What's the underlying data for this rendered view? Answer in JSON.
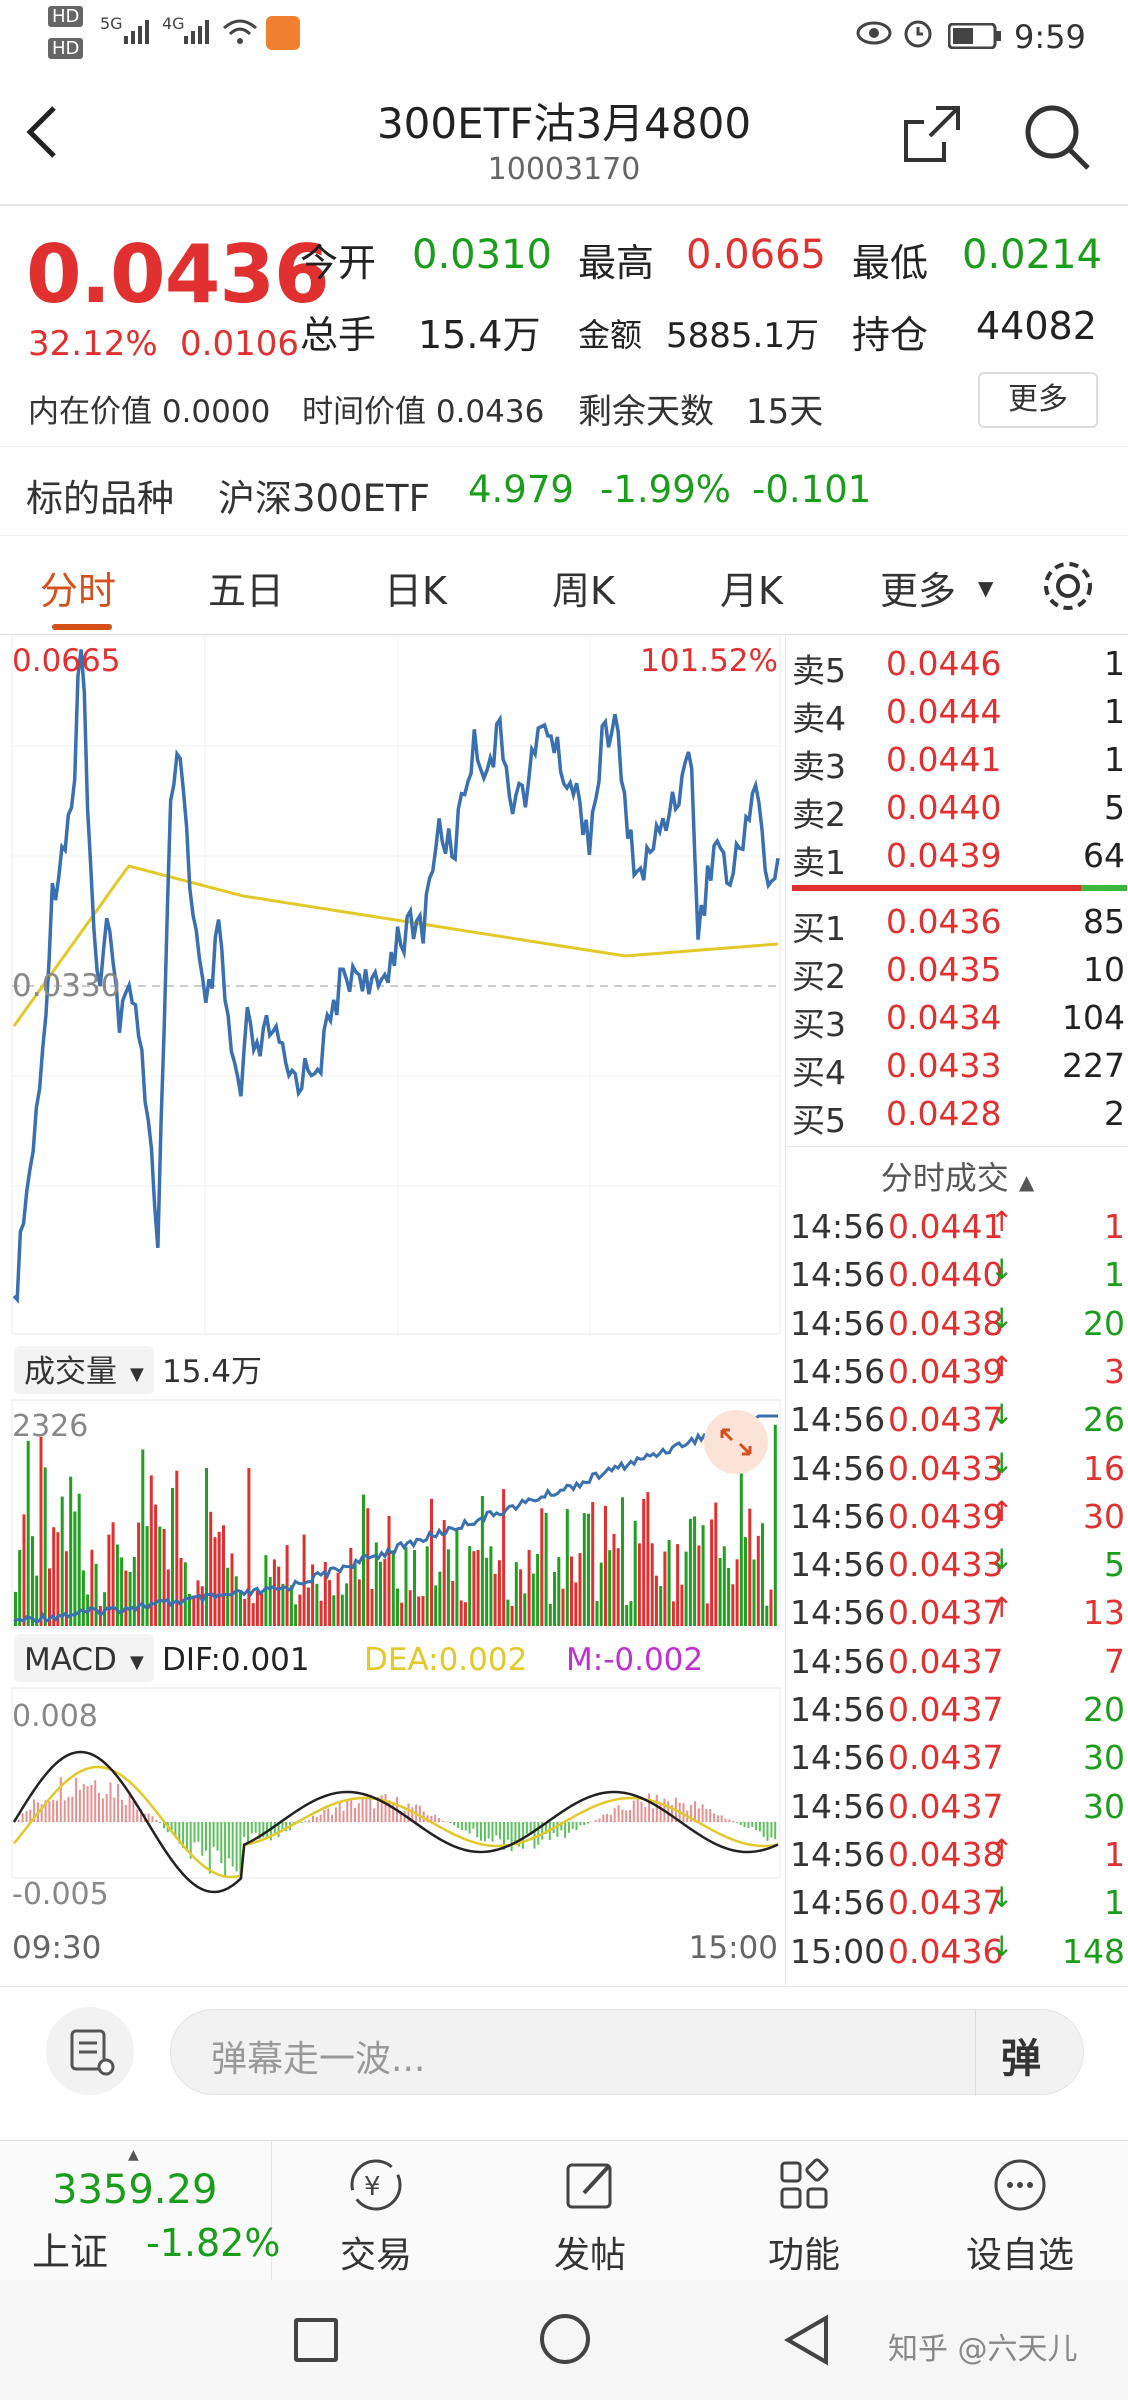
{
  "status": {
    "hd1": "HD",
    "hd2": "HD",
    "n1": "5G",
    "n2": "4G",
    "time": "9:59"
  },
  "header": {
    "title": "300ETF沽3月4800",
    "code": "10003170"
  },
  "quote": {
    "price": "0.0436",
    "change_pct": "32.12%",
    "change": "0.0106",
    "open_label": "今开",
    "open": "0.0310",
    "high_label": "最高",
    "high": "0.0665",
    "low_label": "最低",
    "low": "0.0214",
    "vol_label": "总手",
    "vol": "15.4万",
    "amt_label": "金额",
    "amt": "5885.1万",
    "oi_label": "持仓",
    "oi": "44082",
    "intrinsic": "内在价值 0.0000",
    "time_value": "时间价值 0.0436",
    "days_label": "剩余天数",
    "days": "15天",
    "more": "更多"
  },
  "underlying": {
    "label": "标的品种",
    "name": "沪深300ETF",
    "price": "4.979",
    "pct": "-1.99%",
    "chg": "-0.101"
  },
  "tabs": [
    "分时",
    "五日",
    "日K",
    "周K",
    "月K",
    "更多"
  ],
  "chart": {
    "high_label": "0.0665",
    "pct_label": "101.52%",
    "mid_label": "0.0330",
    "vol_ind": "成交量",
    "vol_val": "15.4万",
    "vol_max": "2326",
    "macd_ind": "MACD",
    "dif": "DIF:0.001",
    "dea": "DEA:0.002",
    "m": "M:-0.002",
    "macd_top": "0.008",
    "macd_bot": "-0.005",
    "t_start": "09:30",
    "t_end": "15:00"
  },
  "colors": {
    "up": "#e03030",
    "down": "#1a9d1a",
    "price_line": "#3a6fb0",
    "avg_line": "#e2c829",
    "accent": "#d6501c"
  },
  "orderbook": {
    "asks": [
      {
        "label": "卖5",
        "price": "0.0446",
        "qty": "1"
      },
      {
        "label": "卖4",
        "price": "0.0444",
        "qty": "1"
      },
      {
        "label": "卖3",
        "price": "0.0441",
        "qty": "1"
      },
      {
        "label": "卖2",
        "price": "0.0440",
        "qty": "5"
      },
      {
        "label": "卖1",
        "price": "0.0439",
        "qty": "64"
      }
    ],
    "bids": [
      {
        "label": "买1",
        "price": "0.0436",
        "qty": "85"
      },
      {
        "label": "买2",
        "price": "0.0435",
        "qty": "10"
      },
      {
        "label": "买3",
        "price": "0.0434",
        "qty": "104"
      },
      {
        "label": "买4",
        "price": "0.0433",
        "qty": "227"
      },
      {
        "label": "买5",
        "price": "0.0428",
        "qty": "2"
      }
    ]
  },
  "ticks_title": "分时成交",
  "ticks": [
    {
      "t": "14:56",
      "p": "0.0441",
      "d": "↑",
      "q": "1",
      "c": "up"
    },
    {
      "t": "14:56",
      "p": "0.0440",
      "d": "↓",
      "q": "1",
      "c": "down"
    },
    {
      "t": "14:56",
      "p": "0.0438",
      "d": "↓",
      "q": "20",
      "c": "down"
    },
    {
      "t": "14:56",
      "p": "0.0439",
      "d": "↑",
      "q": "3",
      "c": "up"
    },
    {
      "t": "14:56",
      "p": "0.0437",
      "d": "↓",
      "q": "26",
      "c": "down"
    },
    {
      "t": "14:56",
      "p": "0.0433",
      "d": "↓",
      "q": "16",
      "c": "up"
    },
    {
      "t": "14:56",
      "p": "0.0439",
      "d": "↑",
      "q": "30",
      "c": "up"
    },
    {
      "t": "14:56",
      "p": "0.0433",
      "d": "↓",
      "q": "5",
      "c": "down"
    },
    {
      "t": "14:56",
      "p": "0.0437",
      "d": "↑",
      "q": "13",
      "c": "up"
    },
    {
      "t": "14:56",
      "p": "0.0437",
      "d": "",
      "q": "7",
      "c": "up"
    },
    {
      "t": "14:56",
      "p": "0.0437",
      "d": "",
      "q": "20",
      "c": "down"
    },
    {
      "t": "14:56",
      "p": "0.0437",
      "d": "",
      "q": "30",
      "c": "down"
    },
    {
      "t": "14:56",
      "p": "0.0437",
      "d": "",
      "q": "30",
      "c": "down"
    },
    {
      "t": "14:56",
      "p": "0.0438",
      "d": "↑",
      "q": "1",
      "c": "up"
    },
    {
      "t": "14:56",
      "p": "0.0437",
      "d": "↓",
      "q": "1",
      "c": "down"
    },
    {
      "t": "15:00",
      "p": "0.0436",
      "d": "↓",
      "q": "148",
      "c": "down"
    }
  ],
  "comment": {
    "placeholder": "弹幕走一波...",
    "btn": "弹"
  },
  "nav": {
    "index_value": "3359.29",
    "index_name": "上证",
    "index_pct": "-1.82%",
    "trade": "交易",
    "post": "发帖",
    "func": "功能",
    "watch": "设自选"
  },
  "watermark": "知乎 @六天儿"
}
